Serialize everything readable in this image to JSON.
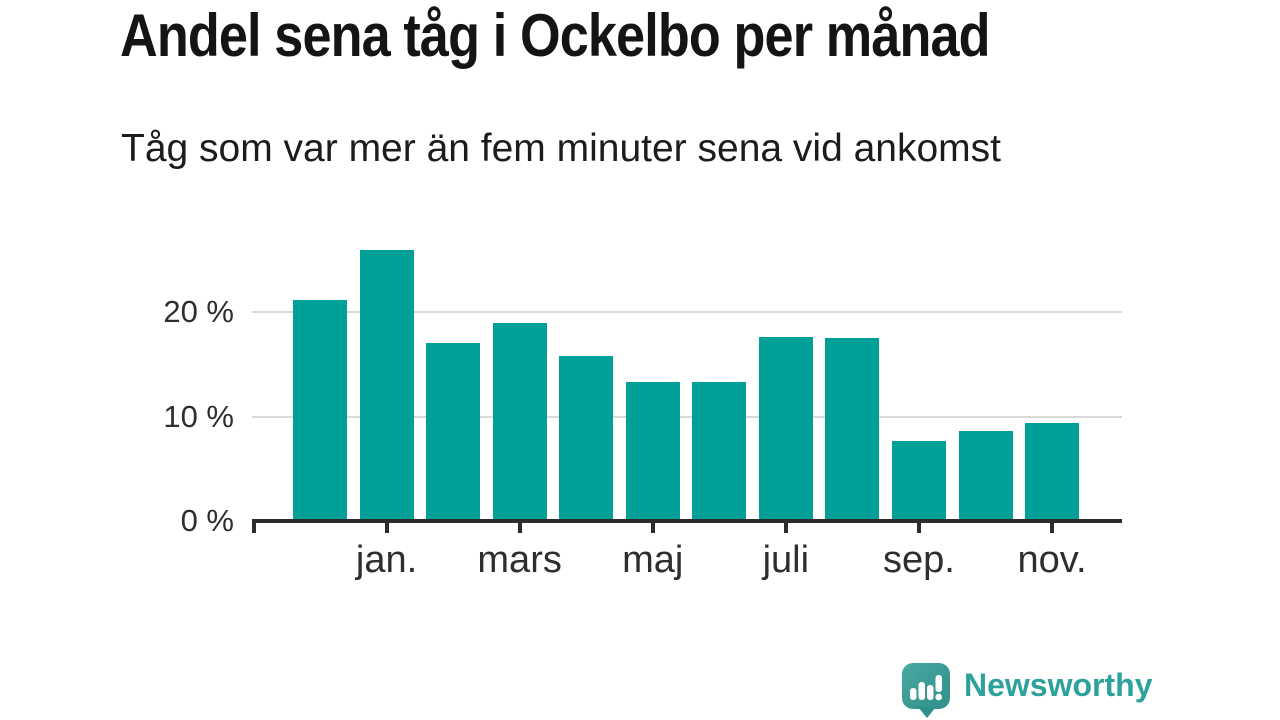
{
  "header": {
    "title": "Andel sena tåg i Ockelbo per månad",
    "subtitle": "Tåg som var mer än fem minuter sena vid ankomst"
  },
  "chart_data": {
    "type": "bar",
    "title": "Andel sena tåg i Ockelbo per månad",
    "subtitle": "Tåg som var mer än fem minuter sena vid ankomst",
    "unit": "%",
    "categories": [
      "",
      "jan.",
      "",
      "mars",
      "",
      "maj",
      "",
      "juli",
      "",
      "sep.",
      "",
      "nov."
    ],
    "values": [
      21.0,
      25.7,
      16.8,
      18.8,
      15.6,
      13.1,
      13.1,
      17.4,
      17.3,
      7.5,
      8.4,
      9.2
    ],
    "x_tick_labels": [
      "jan.",
      "mars",
      "maj",
      "juli",
      "sep.",
      "nov."
    ],
    "y_ticks": [
      {
        "label": "20 %",
        "value": 20
      },
      {
        "label": "10 %",
        "value": 10
      },
      {
        "label": "0 %",
        "value": 0
      }
    ],
    "ylim": [
      0,
      27.8
    ],
    "xlabel": "",
    "ylabel": "",
    "grid": "horizontal-behind-bars",
    "legend": "none",
    "bar_color": "#00a099",
    "gridline_color": "#d9d9d9",
    "axis_color": "#2d2d2d",
    "label_color": "#2e2e2e"
  },
  "footer": {
    "brand": {
      "name": "Newsworthy",
      "text_color": "#2da29b",
      "icon": "newsworthy-speech-bubble-chart-icon",
      "icon_color_top": "#4ba8a2",
      "icon_color_bottom": "#2f8f8a"
    }
  }
}
